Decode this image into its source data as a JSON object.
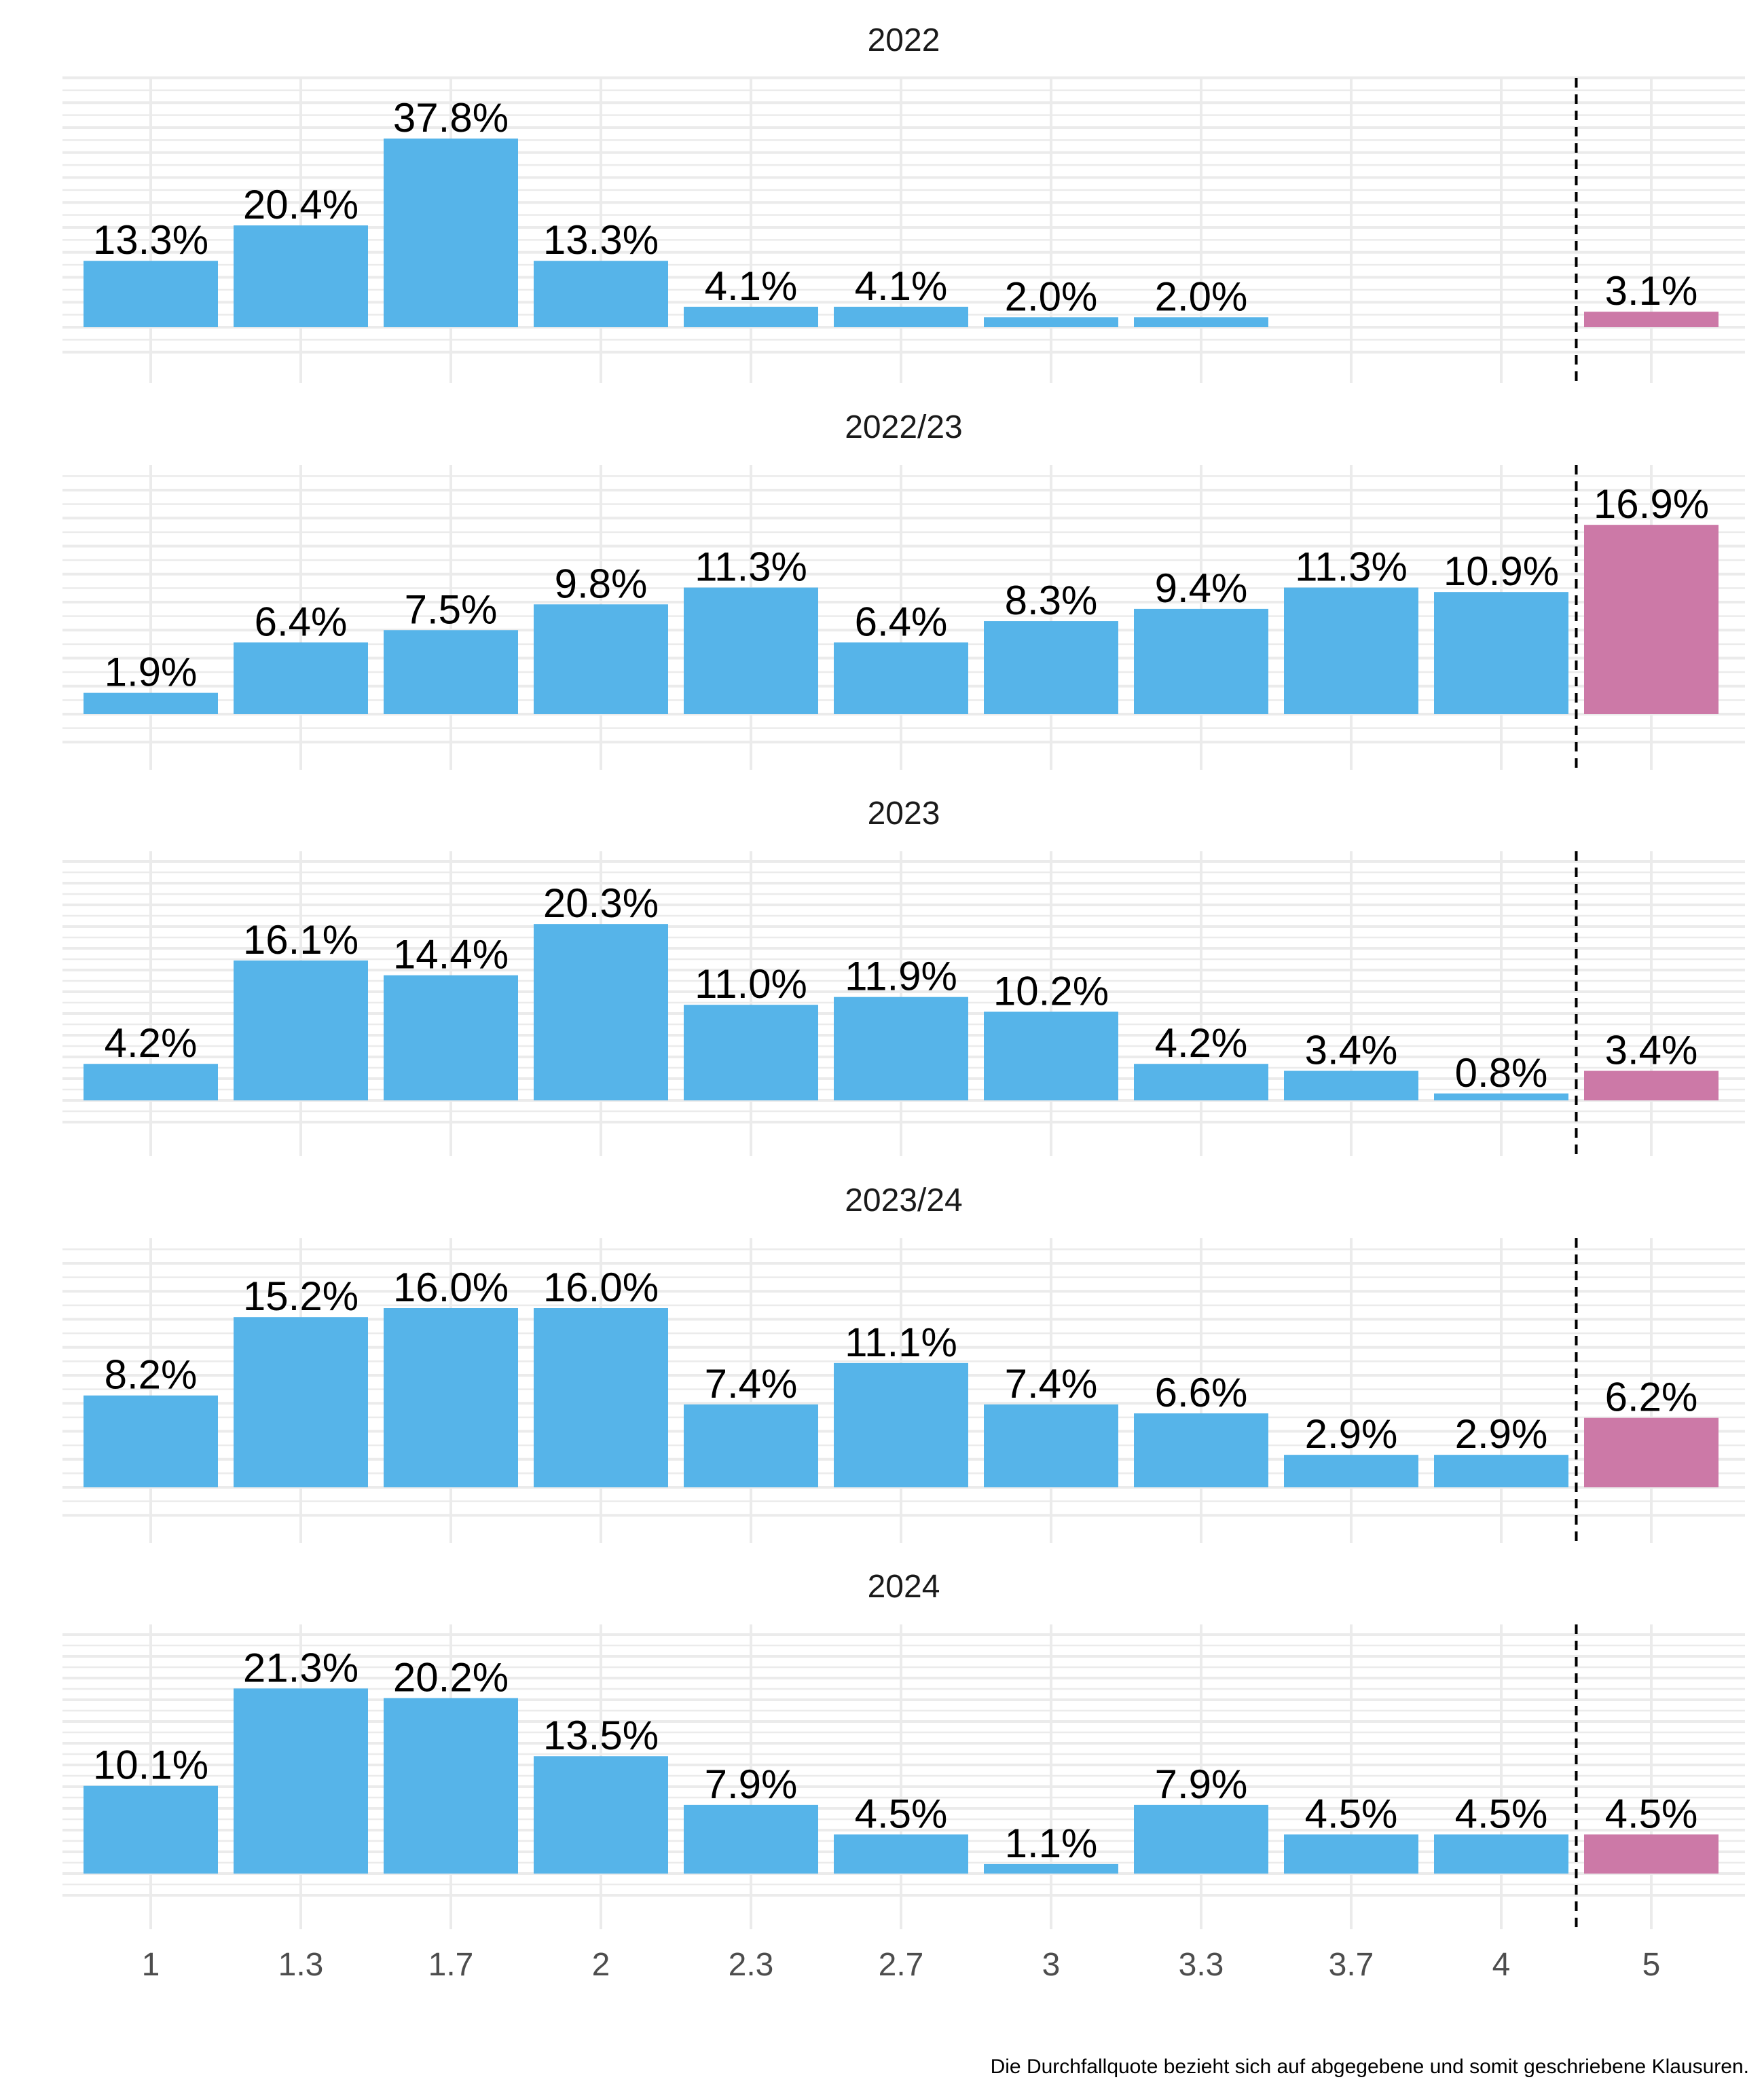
{
  "chart_data": {
    "type": "bar",
    "categories": [
      "1",
      "1.3",
      "1.7",
      "2",
      "2.3",
      "2.7",
      "3",
      "3.3",
      "3.7",
      "4",
      "5"
    ],
    "panels": [
      {
        "title": "2022",
        "values": [
          13.3,
          20.4,
          37.8,
          13.3,
          4.1,
          4.1,
          2.0,
          2.0,
          null,
          null,
          3.1
        ],
        "labels": [
          "13.3%",
          "20.4%",
          "37.8%",
          "13.3%",
          "4.1%",
          "4.1%",
          "2.0%",
          "2.0%",
          "",
          "",
          "3.1%"
        ]
      },
      {
        "title": "2022/23",
        "values": [
          1.9,
          6.4,
          7.5,
          9.8,
          11.3,
          6.4,
          8.3,
          9.4,
          11.3,
          10.9,
          16.9
        ],
        "labels": [
          "1.9%",
          "6.4%",
          "7.5%",
          "9.8%",
          "11.3%",
          "6.4%",
          "8.3%",
          "9.4%",
          "11.3%",
          "10.9%",
          "16.9%"
        ]
      },
      {
        "title": "2023",
        "values": [
          4.2,
          16.1,
          14.4,
          20.3,
          11.0,
          11.9,
          10.2,
          4.2,
          3.4,
          0.8,
          3.4
        ],
        "labels": [
          "4.2%",
          "16.1%",
          "14.4%",
          "20.3%",
          "11.0%",
          "11.9%",
          "10.2%",
          "4.2%",
          "3.4%",
          "0.8%",
          "3.4%"
        ]
      },
      {
        "title": "2023/24",
        "values": [
          8.2,
          15.2,
          16.0,
          16.0,
          7.4,
          11.1,
          7.4,
          6.6,
          2.9,
          2.9,
          6.2
        ],
        "labels": [
          "8.2%",
          "15.2%",
          "16.0%",
          "16.0%",
          "7.4%",
          "11.1%",
          "7.4%",
          "6.6%",
          "2.9%",
          "2.9%",
          "6.2%"
        ]
      },
      {
        "title": "2024",
        "values": [
          10.1,
          21.3,
          20.2,
          13.5,
          7.9,
          4.5,
          1.1,
          7.9,
          4.5,
          4.5,
          4.5
        ],
        "labels": [
          "10.1%",
          "21.3%",
          "20.2%",
          "13.5%",
          "7.9%",
          "4.5%",
          "1.1%",
          "7.9%",
          "4.5%",
          "4.5%",
          "4.5%"
        ]
      }
    ],
    "colors": {
      "pass": "#56B4E9",
      "fail": "#CC79A7",
      "grid": "#EBEBEB",
      "divider": "#000000"
    },
    "grid": true,
    "separator_between": [
      "4",
      "5"
    ],
    "caption": "Die Durchfallquote bezieht sich auf abgegebene und somit geschriebene Klausuren."
  }
}
